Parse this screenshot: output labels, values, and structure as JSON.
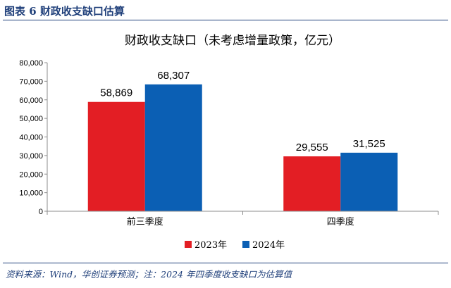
{
  "header": {
    "label": "图表 6    财政收支缺口估算"
  },
  "footer": {
    "source": "资料来源：Wind，华创证券预测；注：2024 年四季度收支缺口为估算值"
  },
  "chart_data": {
    "type": "bar",
    "title": "财政收支缺口（未考虑增量政策，亿元）",
    "categories": [
      "前三季度",
      "四季度"
    ],
    "series": [
      {
        "name": "2023年",
        "values": [
          58869,
          29555
        ],
        "labels": [
          "58,869",
          "29,555"
        ],
        "color": "#e31e24"
      },
      {
        "name": "2024年",
        "values": [
          68307,
          31525
        ],
        "labels": [
          "68,307",
          "31,525"
        ],
        "color": "#0b5fb4"
      }
    ],
    "ylim": [
      0,
      80000
    ],
    "yticks": [
      0,
      10000,
      20000,
      30000,
      40000,
      50000,
      60000,
      70000,
      80000
    ],
    "ytick_labels": [
      "0",
      "10,000",
      "20,000",
      "30,000",
      "40,000",
      "50,000",
      "60,000",
      "70,000",
      "80,000"
    ],
    "xlabel": "",
    "ylabel": "",
    "legend_position": "bottom",
    "grid": false
  }
}
